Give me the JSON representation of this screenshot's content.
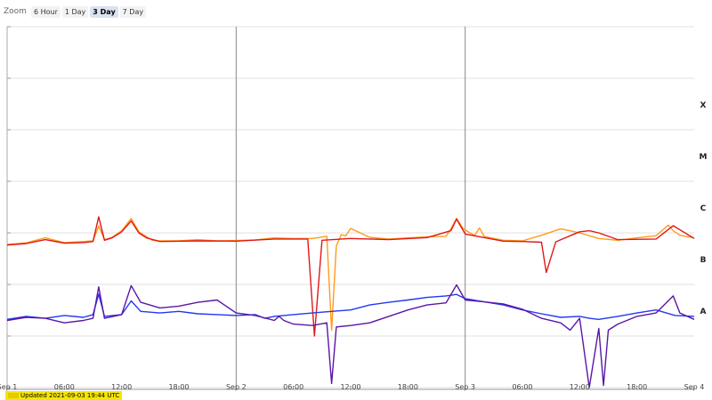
{
  "zoom": {
    "label": "Zoom",
    "options": [
      "6 Hour",
      "1 Day",
      "3 Day",
      "7 Day"
    ],
    "selected": "3 Day"
  },
  "status": "Updated 2021-09-03 19:44 UTC",
  "colors": {
    "orange": "#ff9b1a",
    "red": "#e01818",
    "blue": "#2238ee",
    "purple": "#5a16a6",
    "grid": "#e2e2e2",
    "day_line": "#888888"
  },
  "chart_data": {
    "type": "line",
    "x_start": "Sep 1 00:00",
    "x_end": "Sep 4 00:00",
    "x_ticks": [
      "Sep 1",
      "06:00",
      "12:00",
      "18:00",
      "Sep 2",
      "06:00",
      "12:00",
      "18:00",
      "Sep 3",
      "06:00",
      "12:00",
      "18:00",
      "Sep 4"
    ],
    "flare_classes": [
      "X",
      "M",
      "C",
      "B",
      "A"
    ],
    "legend": false,
    "series": [
      {
        "color": "orange",
        "x_hours": [
          0,
          2,
          4,
          6,
          8,
          9,
          9.6,
          10.2,
          11,
          12,
          13,
          13.8,
          14.6,
          15.2,
          16,
          18,
          20,
          22,
          24,
          26,
          28,
          30,
          32,
          33.5,
          34,
          34.5,
          35,
          35.5,
          36,
          38,
          40,
          42,
          44,
          46,
          46.5,
          47.1,
          47.8,
          48.5,
          49,
          49.5,
          50,
          52,
          54,
          56,
          58,
          60,
          62,
          64,
          66,
          68,
          69.3,
          69.8,
          70.5,
          72
        ],
        "flux": [
          6e-08,
          6.4e-08,
          8e-08,
          6.5e-08,
          6.8e-08,
          7e-08,
          1.35e-07,
          7.4e-08,
          8.2e-08,
          1.1e-07,
          1.9e-07,
          1.05e-07,
          8.5e-08,
          7.2e-08,
          7e-08,
          7e-08,
          7.4e-08,
          7e-08,
          7.1e-08,
          7.3e-08,
          8e-08,
          7.8e-08,
          7.8e-08,
          8.6e-08,
          1.3e-09,
          5.6e-08,
          9.2e-08,
          8.8e-08,
          1.22e-07,
          8.2e-08,
          7.6e-08,
          8e-08,
          8.4e-08,
          8.6e-08,
          1.2e-07,
          1.92e-07,
          1.2e-07,
          1e-07,
          9e-08,
          1.25e-07,
          8.5e-08,
          7.2e-08,
          7e-08,
          9e-08,
          1.2e-07,
          1e-07,
          7.8e-08,
          7.2e-08,
          8e-08,
          8.8e-08,
          1.42e-07,
          1.1e-07,
          9e-08,
          8e-08
        ]
      },
      {
        "color": "red",
        "x_hours": [
          0,
          2,
          4,
          6,
          8,
          9,
          9.6,
          10.2,
          11,
          12,
          13,
          13.8,
          14.6,
          16,
          20,
          24,
          28,
          31.5,
          32.2,
          33,
          36,
          40,
          44,
          46.5,
          47.1,
          48,
          52,
          54,
          56,
          56.5,
          57.5,
          59,
          60,
          61,
          62,
          64,
          68,
          69.8,
          72
        ],
        "flux": [
          5.8e-08,
          6.2e-08,
          7.4e-08,
          6.3e-08,
          6.5e-08,
          6.8e-08,
          2.05e-07,
          7.2e-08,
          8e-08,
          1.05e-07,
          1.7e-07,
          1e-07,
          8e-08,
          6.8e-08,
          7e-08,
          6.9e-08,
          7.6e-08,
          7.6e-08,
          1e-09,
          7.2e-08,
          7.8e-08,
          7.4e-08,
          8.1e-08,
          1.1e-07,
          1.85e-07,
          9.5e-08,
          6.9e-08,
          6.8e-08,
          6.6e-08,
          1.7e-08,
          6.7e-08,
          8.8e-08,
          1.05e-07,
          1.1e-07,
          1e-07,
          7.4e-08,
          7.6e-08,
          1.38e-07,
          7.8e-08
        ]
      },
      {
        "color": "blue",
        "x_hours": [
          0,
          2,
          4,
          6,
          8,
          9,
          9.6,
          10.2,
          12,
          13,
          14,
          16,
          18,
          20,
          22,
          24,
          26,
          27,
          28,
          30,
          32,
          34,
          36,
          38,
          40,
          42,
          44,
          46,
          47.1,
          48,
          50,
          52,
          54,
          56,
          58,
          60,
          61,
          62,
          64,
          66,
          68,
          70,
          72
        ],
        "flux": [
          2.1e-09,
          2.4e-09,
          2.2e-09,
          2.5e-09,
          2.3e-09,
          2.6e-09,
          6.5e-09,
          2.4e-09,
          2.6e-09,
          4.8e-09,
          3e-09,
          2.8e-09,
          3e-09,
          2.7e-09,
          2.6e-09,
          2.5e-09,
          2.6e-09,
          2.2e-09,
          2.4e-09,
          2.6e-09,
          2.8e-09,
          3e-09,
          3.2e-09,
          4e-09,
          4.5e-09,
          5e-09,
          5.6e-09,
          6e-09,
          6.4e-09,
          5.3e-09,
          4.6e-09,
          4e-09,
          3.2e-09,
          2.7e-09,
          2.3e-09,
          2.4e-09,
          2.2e-09,
          2.1e-09,
          2.4e-09,
          2.8e-09,
          3.2e-09,
          2.5e-09,
          2.4e-09
        ]
      },
      {
        "color": "purple",
        "x_hours": [
          0,
          2,
          4,
          6,
          8,
          9,
          9.6,
          10.2,
          12,
          13,
          14,
          16,
          18,
          20,
          22,
          24,
          26,
          28,
          28.5,
          29,
          30,
          32,
          33.5,
          34,
          34.5,
          36,
          38,
          40,
          42,
          44,
          46,
          47.1,
          48,
          50,
          52,
          54,
          56,
          58,
          59,
          60,
          61,
          62,
          62.5,
          63,
          64,
          66,
          68,
          69.8,
          70.5,
          72
        ],
        "flux": [
          2e-09,
          2.3e-09,
          2.2e-09,
          1.8e-09,
          2e-09,
          2.2e-09,
          9e-09,
          2.2e-09,
          2.6e-09,
          9.5e-09,
          4.5e-09,
          3.5e-09,
          3.8e-09,
          4.5e-09,
          5e-09,
          2.8e-09,
          2.5e-09,
          2e-09,
          2.4e-09,
          2e-09,
          1.7e-09,
          1.6e-09,
          1.8e-09,
          1.2e-10,
          1.5e-09,
          1.6e-09,
          1.8e-09,
          2.4e-09,
          3.2e-09,
          4e-09,
          4.4e-09,
          9.8e-09,
          5e-09,
          4.6e-09,
          4.2e-09,
          3.3e-09,
          2.2e-09,
          1.8e-09,
          1.3e-09,
          2.2e-09,
          1e-10,
          1.4e-09,
          1.1e-10,
          1.3e-09,
          1.7e-09,
          2.4e-09,
          2.8e-09,
          6e-09,
          2.8e-09,
          2.1e-09
        ]
      }
    ]
  }
}
